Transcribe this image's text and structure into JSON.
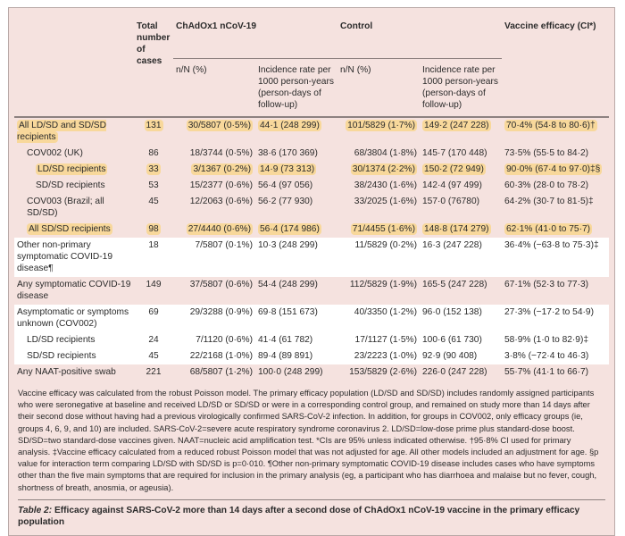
{
  "headers": {
    "total": "Total number of cases",
    "vaccine_group": "ChAdOx1 nCoV-19",
    "control_group": "Control",
    "efficacy": "Vaccine efficacy (CI*)",
    "nN": "n/N (%)",
    "incidence": "Incidence rate per 1000 person-years (person-days of follow-up)"
  },
  "rows": [
    {
      "label": "All LD/SD and SD/SD recipients",
      "total": "131",
      "v_n": "30/5807 (0·5%)",
      "v_inc": "44·1 (248 299)",
      "c_n": "101/5829 (1·7%)",
      "c_inc": "149·2 (247 228)",
      "eff": "70·4% (54·8 to 80·6)†"
    },
    {
      "label": "COV002 (UK)",
      "total": "86",
      "v_n": "18/3744 (0·5%)",
      "v_inc": "38·6 (170 369)",
      "c_n": "68/3804 (1·8%)",
      "c_inc": "145·7 (170 448)",
      "eff": "73·5% (55·5 to 84·2)"
    },
    {
      "label": "LD/SD recipients",
      "total": "33",
      "v_n": "3/1367 (0·2%)",
      "v_inc": "14·9 (73 313)",
      "c_n": "30/1374 (2·2%)",
      "c_inc": "150·2 (72 949)",
      "eff": "90·0% (67·4 to 97·0)‡§"
    },
    {
      "label": "SD/SD recipients",
      "total": "53",
      "v_n": "15/2377 (0·6%)",
      "v_inc": "56·4 (97 056)",
      "c_n": "38/2430 (1·6%)",
      "c_inc": "142·4 (97 499)",
      "eff": "60·3% (28·0 to 78·2)"
    },
    {
      "label": "COV003 (Brazil; all SD/SD)",
      "total": "45",
      "v_n": "12/2063 (0·6%)",
      "v_inc": "56·2 (77 930)",
      "c_n": "33/2025 (1·6%)",
      "c_inc": "157·0 (76780)",
      "eff": "64·2% (30·7 to 81·5)‡"
    },
    {
      "label": "All SD/SD recipients",
      "total": "98",
      "v_n": "27/4440 (0·6%)",
      "v_inc": "56·4 (174 986)",
      "c_n": "71/4455 (1·6%)",
      "c_inc": "148·8 (174 279)",
      "eff": "62·1% (41·0 to 75·7)"
    },
    {
      "label": "Other non-primary symptomatic COVID-19 disease¶",
      "total": "18",
      "v_n": "7/5807 (0·1%)",
      "v_inc": "10·3 (248 299)",
      "c_n": "11/5829 (0·2%)",
      "c_inc": "16·3 (247 228)",
      "eff": "36·4% (−63·8 to 75·3)‡"
    },
    {
      "label": "Any symptomatic COVID-19 disease",
      "total": "149",
      "v_n": "37/5807 (0·6%)",
      "v_inc": "54·4 (248 299)",
      "c_n": "112/5829 (1·9%)",
      "c_inc": "165·5 (247 228)",
      "eff": "67·1% (52·3 to 77·3)"
    },
    {
      "label": "Asymptomatic or symptoms unknown (COV002)",
      "total": "69",
      "v_n": "29/3288 (0·9%)",
      "v_inc": "69·8 (151 673)",
      "c_n": "40/3350 (1·2%)",
      "c_inc": "96·0 (152 138)",
      "eff": "27·3% (−17·2 to 54·9)"
    },
    {
      "label": "LD/SD recipients",
      "total": "24",
      "v_n": "7/1120 (0·6%)",
      "v_inc": "41·4 (61 782)",
      "c_n": "17/1127 (1·5%)",
      "c_inc": "100·6 (61 730)",
      "eff": "58·9% (1·0 to 82·9)‡"
    },
    {
      "label": "SD/SD recipients",
      "total": "45",
      "v_n": "22/2168 (1·0%)",
      "v_inc": "89·4 (89 891)",
      "c_n": "23/2223 (1·0%)",
      "c_inc": "92·9 (90 408)",
      "eff": "3·8% (−72·4 to 46·3)"
    },
    {
      "label": "Any NAAT-positive swab",
      "total": "221",
      "v_n": "68/5807 (1·2%)",
      "v_inc": "100·0 (248 299)",
      "c_n": "153/5829 (2·6%)",
      "c_inc": "226·0 (247 228)",
      "eff": "55·7% (41·1 to 66·7)"
    }
  ],
  "footnote": "Vaccine efficacy was calculated from the robust Poisson model. The primary efficacy population (LD/SD and SD/SD) includes randomly assigned participants who were seronegative at baseline and received LD/SD or SD/SD or were in a corresponding control group, and remained on study more than 14 days after their second dose without having had a previous virologically confirmed SARS-CoV-2 infection. In addition, for groups in COV002, only efficacy groups (ie, groups 4, 6, 9, and 10) are included. SARS-CoV-2=severe acute respiratory syndrome coronavirus 2. LD/SD=low-dose prime plus standard-dose boost. SD/SD=two standard-dose vaccines given. NAAT=nucleic acid amplification test. *CIs are 95% unless indicated otherwise. †95·8% CI used for primary analysis. ‡Vaccine efficacy calculated from a reduced robust Poisson model that was not adjusted for age. All other models included an adjustment for age. §p value for interaction term comparing LD/SD with SD/SD is p=0·010. ¶Other non-primary symptomatic COVID-19 disease includes cases who have symptoms other than the five main symptoms that are required for inclusion in the primary analysis (eg, a participant who has diarrhoea and malaise but no fever, cough, shortness of breath, anosmia, or ageusia).",
  "caption": {
    "label": "Table 2:",
    "text": " Efficacy against SARS-CoV-2 more than 14 days after a second dose of ChAdOx1 nCoV-19 vaccine in the primary efficacy population"
  },
  "colors": {
    "background": "#f5e2df",
    "highlight": "#f8d89b",
    "rule": "#8d8180"
  }
}
